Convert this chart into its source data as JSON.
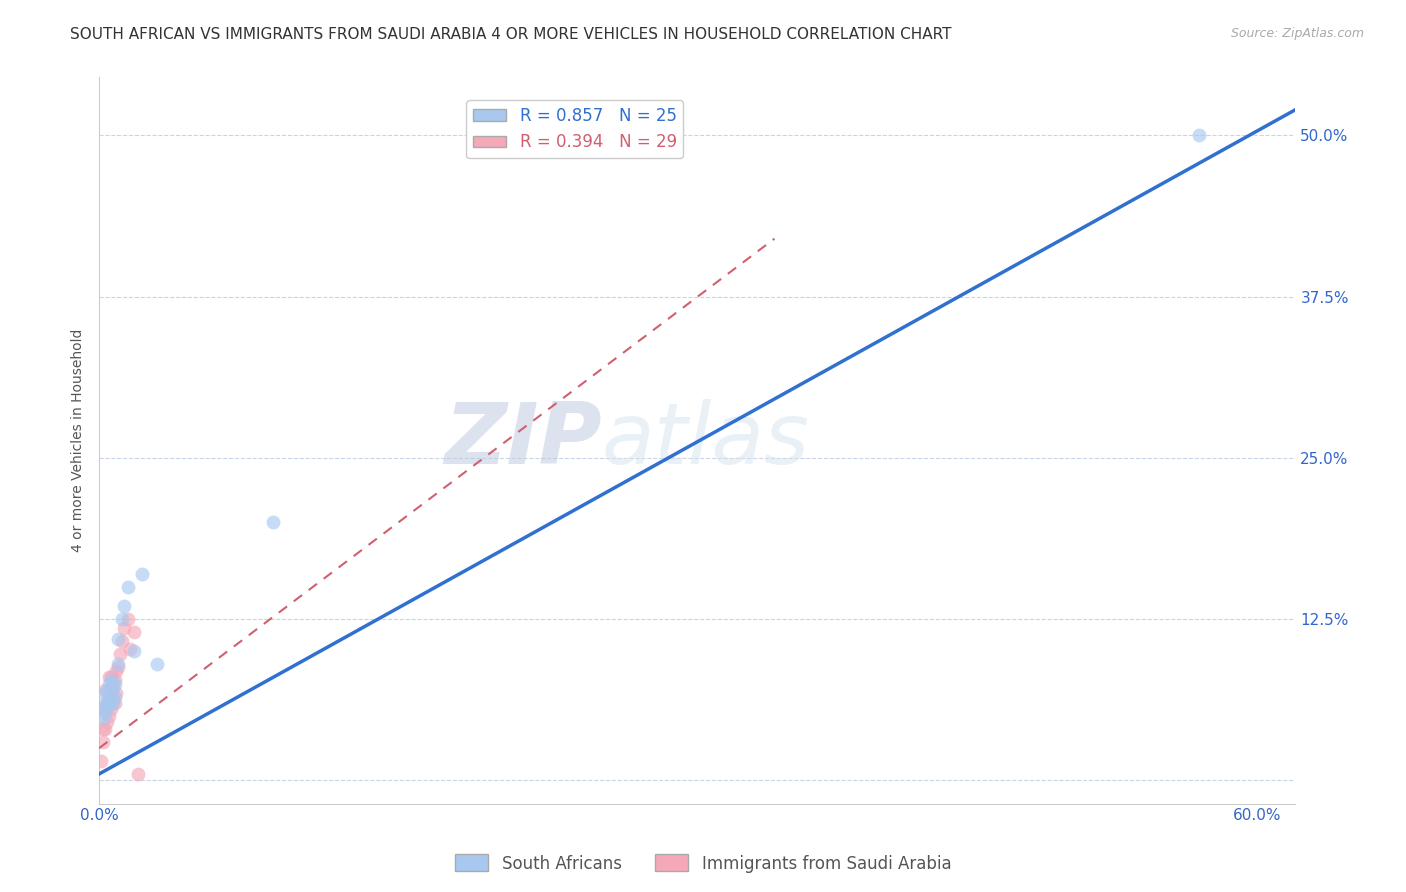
{
  "title": "SOUTH AFRICAN VS IMMIGRANTS FROM SAUDI ARABIA 4 OR MORE VEHICLES IN HOUSEHOLD CORRELATION CHART",
  "source": "Source: ZipAtlas.com",
  "ylabel": "4 or more Vehicles in Household",
  "xlim": [
    0.0,
    0.62
  ],
  "ylim": [
    -0.018,
    0.545
  ],
  "xticks": [
    0.0,
    0.15,
    0.3,
    0.45,
    0.6
  ],
  "xtick_labels": [
    "0.0%",
    "",
    "",
    "",
    "60.0%"
  ],
  "ytick_positions": [
    0.0,
    0.125,
    0.25,
    0.375,
    0.5
  ],
  "ytick_labels": [
    "",
    "12.5%",
    "25.0%",
    "37.5%",
    "50.0%"
  ],
  "blue_R": 0.857,
  "blue_N": 25,
  "pink_R": 0.394,
  "pink_N": 29,
  "blue_color": "#a8c8f0",
  "pink_color": "#f4a8b8",
  "blue_line_color": "#3070d0",
  "pink_line_color": "#d06070",
  "background_color": "#ffffff",
  "grid_color": "#c8d4e8",
  "watermark_zip": "ZIP",
  "watermark_atlas": "atlas",
  "legend_label_blue": "South Africans",
  "legend_label_pink": "Immigrants from Saudi Arabia",
  "blue_scatter_x": [
    0.002,
    0.002,
    0.003,
    0.003,
    0.003,
    0.004,
    0.004,
    0.005,
    0.005,
    0.006,
    0.006,
    0.007,
    0.007,
    0.008,
    0.008,
    0.01,
    0.01,
    0.012,
    0.013,
    0.015,
    0.018,
    0.022,
    0.03,
    0.09,
    0.57
  ],
  "blue_scatter_y": [
    0.048,
    0.056,
    0.052,
    0.06,
    0.068,
    0.06,
    0.07,
    0.058,
    0.075,
    0.065,
    0.078,
    0.06,
    0.072,
    0.065,
    0.075,
    0.09,
    0.11,
    0.125,
    0.135,
    0.15,
    0.1,
    0.16,
    0.09,
    0.2,
    0.5
  ],
  "pink_scatter_x": [
    0.001,
    0.002,
    0.002,
    0.002,
    0.003,
    0.003,
    0.003,
    0.004,
    0.004,
    0.005,
    0.005,
    0.005,
    0.006,
    0.006,
    0.006,
    0.007,
    0.007,
    0.008,
    0.008,
    0.009,
    0.009,
    0.01,
    0.011,
    0.012,
    0.013,
    0.015,
    0.016,
    0.018,
    0.02
  ],
  "pink_scatter_y": [
    0.015,
    0.03,
    0.04,
    0.055,
    0.04,
    0.055,
    0.07,
    0.045,
    0.06,
    0.05,
    0.065,
    0.08,
    0.055,
    0.068,
    0.08,
    0.062,
    0.075,
    0.06,
    0.078,
    0.068,
    0.085,
    0.088,
    0.098,
    0.108,
    0.118,
    0.125,
    0.102,
    0.115,
    0.005
  ],
  "blue_line_x0": 0.0,
  "blue_line_y0": 0.005,
  "blue_line_x1": 0.62,
  "blue_line_y1": 0.52,
  "pink_line_x0": 0.0,
  "pink_line_y0": 0.025,
  "pink_line_x1": 0.35,
  "pink_line_y1": 0.42,
  "title_fontsize": 11,
  "source_fontsize": 9,
  "axis_label_fontsize": 10,
  "tick_fontsize": 11,
  "legend_fontsize": 12,
  "marker_size": 100
}
